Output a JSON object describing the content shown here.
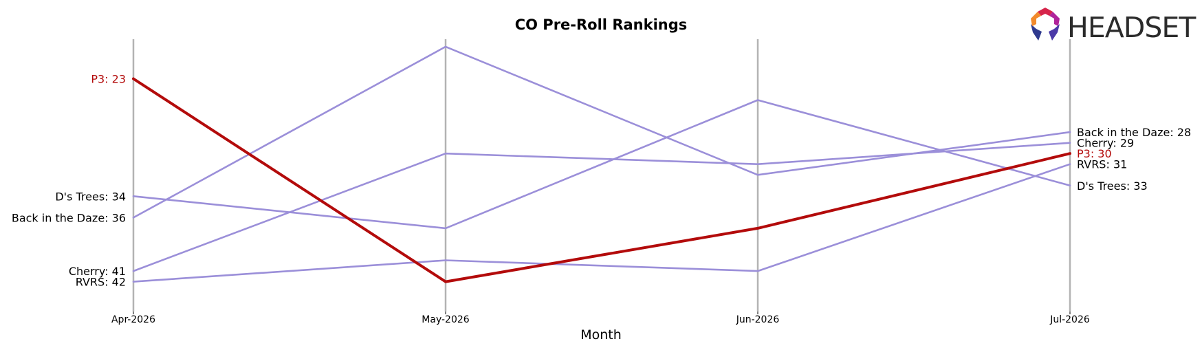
{
  "chart_data": {
    "type": "line",
    "title": "CO Pre-Roll Rankings",
    "xlabel": "Month",
    "ylabel": "",
    "categories": [
      "Apr-2026",
      "May-2026",
      "Jun-2026",
      "Jul-2026"
    ],
    "ylim": [
      44.6,
      19.3
    ],
    "y_inverted": true,
    "grid": "vertical lines at each month",
    "series": [
      {
        "name": "P3",
        "values": [
          23,
          42,
          37,
          30
        ],
        "highlight": true
      },
      {
        "name": "D's Trees",
        "values": [
          34,
          37,
          25,
          33
        ],
        "highlight": false
      },
      {
        "name": "Back in the Daze",
        "values": [
          36,
          20,
          32,
          28
        ],
        "highlight": false
      },
      {
        "name": "Cherry",
        "values": [
          41,
          30,
          31,
          29
        ],
        "highlight": false
      },
      {
        "name": "RVRS",
        "values": [
          42,
          40,
          41,
          31
        ],
        "highlight": false
      }
    ],
    "colors": {
      "highlight": "#b30b0b",
      "other": "#9b8fd9",
      "gridline": "#b3b3b3"
    }
  },
  "logo": {
    "text": "HEADSET",
    "name": "headset-logo"
  }
}
